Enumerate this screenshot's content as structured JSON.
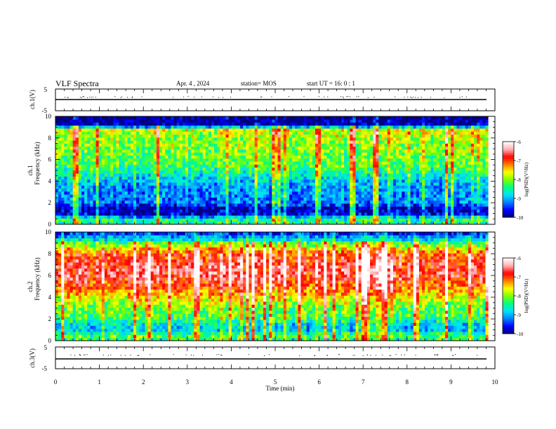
{
  "header": {
    "title": "VLF Spectra",
    "date": "Apr. 4  , 2024",
    "station": "station= MOS",
    "start_ut": "start  UT  =   16: 0   : 1"
  },
  "colors": {
    "background": "#ffffff",
    "axis": "#000000",
    "spectrogram_background": "#00007a",
    "colormap": [
      "#000080",
      "#0000ff",
      "#0080ff",
      "#00e0ff",
      "#00ff80",
      "#80ff00",
      "#ffff00",
      "#ff8000",
      "#ff0000",
      "#ffb0b0",
      "#ffffff"
    ]
  },
  "chart_data": [
    {
      "type": "line",
      "name": "ch1-waveform",
      "ylabel": "ch.1(V)",
      "ylim": [
        -5,
        5
      ],
      "yticks": [
        "5",
        "-5"
      ],
      "xlim": [
        0,
        10
      ],
      "trace_level": 0,
      "grid": false
    },
    {
      "type": "heatmap",
      "name": "ch1-spectrogram",
      "ylabel": "ch.1",
      "ylabel2": "Frequency  (kHz)",
      "ylim": [
        0,
        10
      ],
      "yticks": [
        "0",
        "2",
        "4",
        "6",
        "8",
        "10"
      ],
      "xlim": [
        0,
        10
      ],
      "data_end_min": 9.85,
      "colorbar": {
        "label": "log(PSD)(V²/Hz)",
        "range": [
          -10,
          -6
        ],
        "ticks": [
          "-6",
          "-7",
          "-8",
          "-9",
          "-10"
        ]
      },
      "frequency_profile_khz": [
        0,
        0.5,
        1,
        1.5,
        2,
        3,
        4,
        5,
        6,
        7,
        8,
        8.8,
        9.2,
        10
      ],
      "log_psd_profile": [
        -8.6,
        -8.4,
        -9.8,
        -9.9,
        -9.2,
        -9.1,
        -8.9,
        -8.4,
        -8.1,
        -8.0,
        -7.9,
        -7.7,
        -9.9,
        -10.0
      ]
    },
    {
      "type": "heatmap",
      "name": "ch2-spectrogram",
      "ylabel": "ch.2",
      "ylabel2": "Frequency  (kHz)",
      "ylim": [
        0,
        10
      ],
      "yticks": [
        "0",
        "2",
        "4",
        "6",
        "8",
        "10"
      ],
      "xlim": [
        0,
        10
      ],
      "data_end_min": 9.85,
      "colorbar": {
        "label": "log(PSD)(V²/Hz)",
        "range": [
          -10,
          -6
        ],
        "ticks": [
          "-6",
          "-7",
          "-8",
          "-9",
          "-10"
        ]
      },
      "frequency_profile_khz": [
        0,
        0.5,
        1,
        1.5,
        2,
        3,
        4,
        5,
        6,
        7,
        8,
        8.8,
        9.4,
        10
      ],
      "log_psd_profile": [
        -8.4,
        -8.2,
        -8.9,
        -8.8,
        -8.3,
        -8.1,
        -7.6,
        -7.0,
        -6.7,
        -6.7,
        -7.0,
        -7.9,
        -8.9,
        -9.6
      ]
    },
    {
      "type": "line",
      "name": "ch3-waveform",
      "ylabel": "ch.3(V)",
      "ylim": [
        -5,
        5
      ],
      "yticks": [
        "5",
        "-5"
      ],
      "xlim": [
        0,
        10
      ],
      "trace_level": 0,
      "grid": false
    }
  ],
  "x_axis": {
    "label": "Time  (min)",
    "ticks": [
      "0",
      "1",
      "2",
      "3",
      "4",
      "5",
      "6",
      "7",
      "8",
      "9",
      "10"
    ]
  }
}
